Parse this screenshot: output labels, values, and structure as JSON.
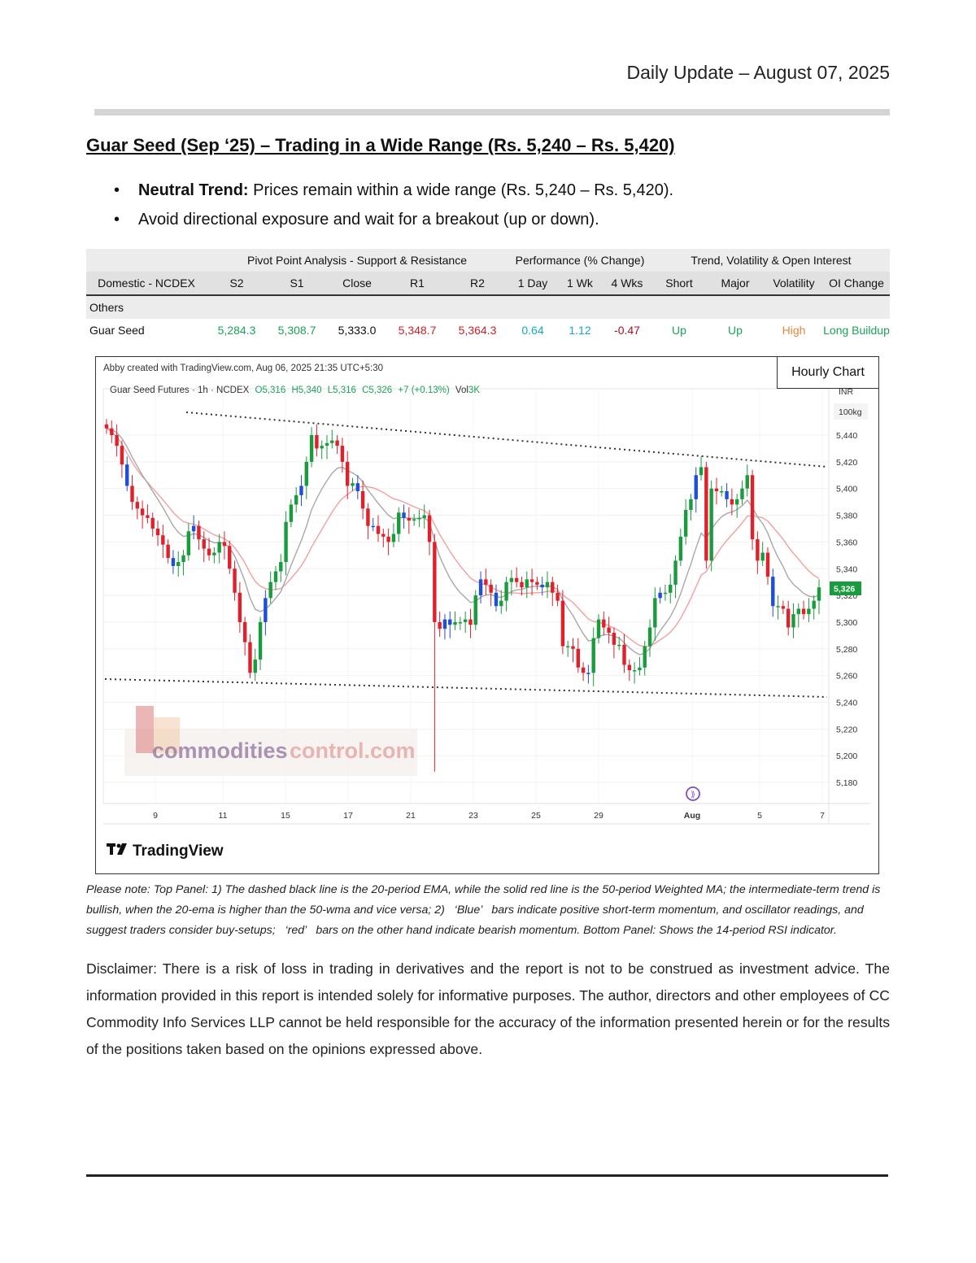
{
  "header": {
    "date_line": "Daily Update – August 07, 2025"
  },
  "headline": "Guar Seed (Sep    ‘25) – Trading in a Wide Range (Rs. 5,240 – Rs. 5,420)",
  "bullets": [
    {
      "bold": "Neutral Trend:",
      "text": " Prices remain within a wide range (Rs. 5,240 – Rs. 5,420)."
    },
    {
      "bold": "",
      "text": "Avoid directional exposure and wait for a breakout (up or down)."
    }
  ],
  "bullet_symbol": "•",
  "table": {
    "groups": {
      "pivot": "Pivot Point Analysis - Support & Resistance",
      "performance": "Performance (% Change)",
      "trend": "Trend, Volatility & Open Interest"
    },
    "headers": [
      "Domestic - NCDEX",
      "S2",
      "S1",
      "Close",
      "R1",
      "R2",
      "1 Day",
      "1 Wk",
      "4 Wks",
      "Short",
      "Major",
      "Volatility",
      "OI Change"
    ],
    "section": "Others",
    "row": {
      "name": "Guar Seed",
      "s2": "5,284.3",
      "s1": "5,308.7",
      "close": "5,333.0",
      "r1": "5,348.7",
      "r2": "5,364.3",
      "d1": "0.64",
      "w1": "1.12",
      "w4": "-0.47",
      "short": "Up",
      "major": "Up",
      "volatility": "High",
      "oi": "Long Buildup"
    }
  },
  "chart": {
    "label": "Hourly Chart",
    "created": "Abby created with TradingView.com, Aug 06, 2025 21:35 UTC+5:30",
    "legend": {
      "symbol": "Guar Seed Futures · 1h · NCDEX",
      "o": "O5,316",
      "h": "H5,340",
      "l": "L5,316",
      "c": "C5,326",
      "chg": "+7 (+0.13%)",
      "vol_label": "Vol",
      "vol": "3K"
    },
    "currency": "INR",
    "unit": "100kg",
    "price_tag": "5,326",
    "watermark": {
      "part1": "commodities",
      "part2": "control.com"
    },
    "brand": "TradingView",
    "colors": {
      "up": "#1a9b3e",
      "down": "#e0202a",
      "blue": "#1f4fd6",
      "ema": "#a8a8a8",
      "wma": "#f2a0a0"
    }
  },
  "chart_data": {
    "type": "candlestick",
    "title": "Guar Seed Futures · 1h · NCDEX",
    "ylim": [
      5170,
      5460
    ],
    "y_ticks": [
      5440,
      5420,
      5400,
      5380,
      5360,
      5340,
      5320,
      5300,
      5280,
      5260,
      5240,
      5220,
      5200,
      5180
    ],
    "y_tick_labels": [
      "5,440",
      "5,420",
      "5,400",
      "5,380",
      "5,360",
      "5,340",
      "5,320",
      "5,300",
      "5,280",
      "5,260",
      "5,240",
      "5,220",
      "5,200",
      "5,180"
    ],
    "x_tick_labels": [
      "9",
      "11",
      "15",
      "17",
      "21",
      "23",
      "25",
      "29",
      "Aug",
      "5",
      "7"
    ],
    "close_series": [
      5445,
      5440,
      5432,
      5418,
      5402,
      5390,
      5385,
      5380,
      5378,
      5370,
      5365,
      5358,
      5348,
      5342,
      5345,
      5350,
      5368,
      5372,
      5362,
      5355,
      5350,
      5352,
      5360,
      5357,
      5340,
      5322,
      5300,
      5285,
      5262,
      5272,
      5300,
      5318,
      5330,
      5338,
      5345,
      5375,
      5388,
      5395,
      5402,
      5420,
      5440,
      5430,
      5432,
      5434,
      5436,
      5432,
      5420,
      5402,
      5404,
      5398,
      5385,
      5372,
      5372,
      5366,
      5364,
      5360,
      5366,
      5382,
      5378,
      5376,
      5377,
      5378,
      5380,
      5360,
      5300,
      5295,
      5302,
      5298,
      5300,
      5300,
      5302,
      5298,
      5320,
      5332,
      5328,
      5322,
      5312,
      5316,
      5330,
      5333,
      5330,
      5326,
      5332,
      5330,
      5328,
      5326,
      5330,
      5322,
      5316,
      5282,
      5282,
      5280,
      5266,
      5262,
      5262,
      5288,
      5302,
      5296,
      5292,
      5283,
      5283,
      5268,
      5264,
      5264,
      5266,
      5282,
      5296,
      5318,
      5322,
      5322,
      5328,
      5346,
      5364,
      5384,
      5392,
      5410,
      5416,
      5346,
      5400,
      5398,
      5398,
      5392,
      5388,
      5392,
      5400,
      5410,
      5362,
      5346,
      5352,
      5334,
      5312,
      5312,
      5310,
      5296,
      5306,
      5310,
      5306,
      5310,
      5316,
      5326
    ]
  }
}
